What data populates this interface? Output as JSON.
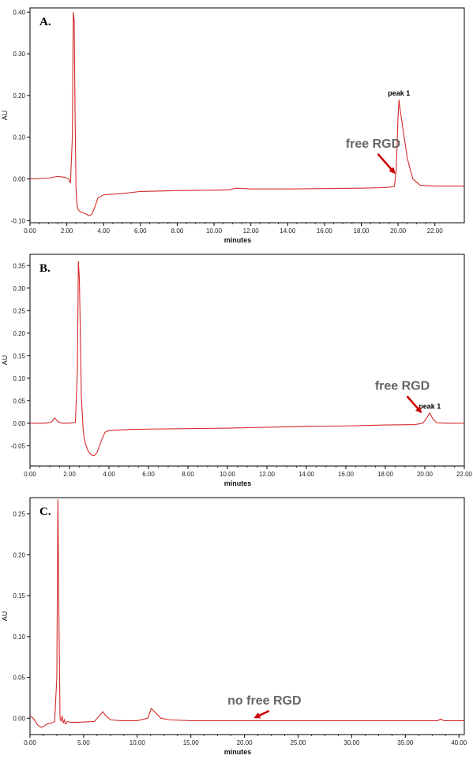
{
  "colors": {
    "trace": "#d42a2a",
    "arrow": "#cc0000",
    "annotation": "#666666"
  },
  "chart_data": [
    {
      "type": "line",
      "panel_label": "A.",
      "xlabel": "minutes",
      "ylabel": "AU",
      "xlim": [
        0,
        23.6
      ],
      "ylim": [
        -0.105,
        0.41
      ],
      "xticks": [
        0,
        2,
        4,
        6,
        8,
        10,
        12,
        14,
        16,
        18,
        20,
        22
      ],
      "xtick_labels": [
        "0.00",
        "2.00",
        "4.00",
        "6.00",
        "8.00",
        "10.00",
        "12.00",
        "14.00",
        "16.00",
        "18.00",
        "20.00",
        "22.00"
      ],
      "yticks": [
        -0.1,
        0.0,
        0.1,
        0.2,
        0.3,
        0.4
      ],
      "ytick_labels": [
        "-0.10",
        "0.00",
        "0.10",
        "0.20",
        "0.30",
        "0.40"
      ],
      "peak_label": {
        "text": "peak 1",
        "x": 20.05,
        "y": 0.19
      },
      "annotation": {
        "text": "free  RGD",
        "arrow_from": [
          18.9,
          0.06
        ],
        "arrow_to": [
          19.8,
          0.015
        ]
      },
      "series": [
        {
          "x": [
            0,
            1,
            1.5,
            1.9,
            2.1,
            2.2,
            2.3,
            2.35,
            2.4,
            2.45,
            2.5,
            2.55,
            2.6,
            2.7,
            2.8,
            3.0,
            3.2,
            3.35,
            3.5,
            3.7,
            4.0,
            5.0,
            6.0,
            8.0,
            10.0,
            10.8,
            11.2,
            12.0,
            14.0,
            16.0,
            18.0,
            19.0,
            19.5,
            19.8,
            19.9,
            20.0,
            20.05,
            20.1,
            20.3,
            20.5,
            20.8,
            21.2,
            22.0,
            23.6
          ],
          "y": [
            0.0,
            0.002,
            0.006,
            0.004,
            0.0,
            -0.01,
            0.1,
            0.4,
            0.38,
            0.15,
            -0.02,
            -0.06,
            -0.072,
            -0.078,
            -0.08,
            -0.083,
            -0.088,
            -0.085,
            -0.07,
            -0.045,
            -0.038,
            -0.035,
            -0.03,
            -0.028,
            -0.027,
            -0.026,
            -0.022,
            -0.024,
            -0.024,
            -0.023,
            -0.022,
            -0.021,
            -0.02,
            -0.018,
            0.02,
            0.15,
            0.19,
            0.17,
            0.11,
            0.05,
            0.0,
            -0.015,
            -0.017,
            -0.017
          ]
        }
      ]
    },
    {
      "type": "line",
      "panel_label": "B.",
      "xlabel": "minutes",
      "ylabel": "AU",
      "xlim": [
        0,
        22.0
      ],
      "ylim": [
        -0.095,
        0.375
      ],
      "xticks": [
        0,
        2,
        4,
        6,
        8,
        10,
        12,
        14,
        16,
        18,
        20,
        22
      ],
      "xtick_labels": [
        "0.00",
        "2.00",
        "4.00",
        "6.00",
        "8.00",
        "10.00",
        "12.00",
        "14.00",
        "16.00",
        "18.00",
        "20.00",
        "22.00"
      ],
      "yticks": [
        -0.05,
        0.0,
        0.05,
        0.1,
        0.15,
        0.2,
        0.25,
        0.3,
        0.35
      ],
      "ytick_labels": [
        "-0.05",
        "0.00",
        "0.05",
        "0.10",
        "0.15",
        "0.20",
        "0.25",
        "0.30",
        "0.35"
      ],
      "peak_label": {
        "text": "peak 1",
        "x": 20.25,
        "y": 0.023
      },
      "annotation": {
        "text": "free  RGD",
        "arrow_from": [
          19.1,
          0.06
        ],
        "arrow_to": [
          19.8,
          0.025
        ]
      },
      "series": [
        {
          "x": [
            0,
            0.8,
            1.1,
            1.25,
            1.4,
            1.6,
            2.0,
            2.3,
            2.4,
            2.45,
            2.5,
            2.55,
            2.6,
            2.7,
            2.8,
            2.95,
            3.1,
            3.25,
            3.4,
            3.6,
            3.8,
            4.0,
            5.0,
            6.0,
            8.0,
            10.0,
            12.0,
            14.0,
            16.0,
            18.0,
            19.5,
            19.9,
            20.1,
            20.25,
            20.4,
            20.6,
            21.0,
            22.0
          ],
          "y": [
            0.0,
            0.0,
            0.003,
            0.012,
            0.004,
            0.0,
            0.0,
            0.002,
            0.12,
            0.36,
            0.32,
            0.2,
            0.06,
            -0.02,
            -0.045,
            -0.062,
            -0.07,
            -0.072,
            -0.065,
            -0.04,
            -0.02,
            -0.016,
            -0.014,
            -0.013,
            -0.012,
            -0.011,
            -0.009,
            -0.007,
            -0.006,
            -0.004,
            -0.003,
            0.0,
            0.012,
            0.023,
            0.01,
            0.001,
            0.0,
            0.0
          ]
        }
      ]
    },
    {
      "type": "line",
      "panel_label": "C.",
      "xlabel": "minutes",
      "ylabel": "AU",
      "xlim": [
        0,
        40.5
      ],
      "ylim": [
        -0.02,
        0.27
      ],
      "xticks": [
        0,
        5,
        10,
        15,
        20,
        25,
        30,
        35,
        40
      ],
      "xtick_labels": [
        "0.00",
        "5.00",
        "10.00",
        "15.00",
        "20.00",
        "25.00",
        "30.00",
        "35.00",
        "40.00"
      ],
      "yticks": [
        0.0,
        0.05,
        0.1,
        0.15,
        0.2,
        0.25
      ],
      "ytick_labels": [
        "0.00",
        "0.05",
        "0.10",
        "0.15",
        "0.20",
        "0.25"
      ],
      "annotation": {
        "text": "no free RGD",
        "arrow_from": [
          22.3,
          0.009
        ],
        "arrow_to": [
          21.0,
          0.001
        ]
      },
      "series": [
        {
          "x": [
            0,
            0.3,
            0.7,
            1.0,
            1.3,
            1.6,
            2.0,
            2.3,
            2.5,
            2.6,
            2.7,
            2.8,
            2.9,
            3.0,
            3.1,
            3.2,
            3.3,
            3.5,
            3.8,
            4.5,
            6.0,
            6.8,
            7.0,
            7.5,
            8.5,
            10.0,
            11.0,
            11.3,
            11.6,
            12.2,
            13.0,
            15.0,
            20.0,
            25.0,
            30.0,
            35.0,
            38.0,
            38.3,
            38.6,
            40.5
          ],
          "y": [
            0.003,
            0.0,
            -0.008,
            -0.011,
            -0.01,
            -0.007,
            -0.006,
            -0.004,
            0.05,
            0.268,
            0.12,
            0.0,
            -0.004,
            0.003,
            -0.006,
            -0.002,
            -0.007,
            -0.004,
            -0.005,
            -0.005,
            -0.004,
            0.008,
            0.004,
            -0.002,
            -0.003,
            -0.003,
            0.0,
            0.012,
            0.008,
            0.0,
            -0.002,
            -0.003,
            -0.003,
            -0.003,
            -0.003,
            -0.003,
            -0.003,
            -0.001,
            -0.003,
            -0.003
          ]
        }
      ]
    }
  ]
}
